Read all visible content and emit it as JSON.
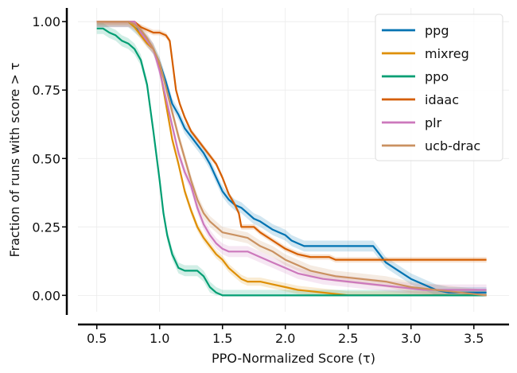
{
  "chart_data": {
    "type": "line",
    "xlabel": "PPO-Normalized Score (τ)",
    "ylabel": "Fraction of runs with score > τ",
    "xlim": [
      0.35,
      3.78
    ],
    "ylim": [
      -0.06,
      1.05
    ],
    "xticks": [
      "0.5",
      "1.0",
      "1.5",
      "2.0",
      "2.5",
      "3.0",
      "3.5"
    ],
    "xtick_values": [
      0.5,
      1.0,
      1.5,
      2.0,
      2.5,
      3.0,
      3.5
    ],
    "yticks": [
      "0.00",
      "0.25",
      "0.50",
      "0.75",
      "1.00"
    ],
    "ytick_values": [
      0.0,
      0.25,
      0.5,
      0.75,
      1.0
    ],
    "grid": true,
    "legend_position": "top-right",
    "series": [
      {
        "name": "ppg",
        "color": "#0173b2",
        "band": 0.02,
        "points": [
          [
            0.5,
            1.0
          ],
          [
            0.75,
            1.0
          ],
          [
            0.8,
            0.98
          ],
          [
            0.85,
            0.96
          ],
          [
            0.9,
            0.93
          ],
          [
            0.95,
            0.9
          ],
          [
            1.0,
            0.85
          ],
          [
            1.05,
            0.78
          ],
          [
            1.1,
            0.7
          ],
          [
            1.15,
            0.66
          ],
          [
            1.2,
            0.61
          ],
          [
            1.25,
            0.58
          ],
          [
            1.3,
            0.55
          ],
          [
            1.35,
            0.52
          ],
          [
            1.4,
            0.48
          ],
          [
            1.45,
            0.43
          ],
          [
            1.5,
            0.38
          ],
          [
            1.55,
            0.35
          ],
          [
            1.6,
            0.33
          ],
          [
            1.65,
            0.32
          ],
          [
            1.7,
            0.3
          ],
          [
            1.75,
            0.28
          ],
          [
            1.8,
            0.27
          ],
          [
            1.9,
            0.24
          ],
          [
            2.0,
            0.22
          ],
          [
            2.05,
            0.2
          ],
          [
            2.1,
            0.19
          ],
          [
            2.15,
            0.18
          ],
          [
            2.7,
            0.18
          ],
          [
            2.75,
            0.15
          ],
          [
            2.8,
            0.12
          ],
          [
            2.9,
            0.09
          ],
          [
            3.0,
            0.06
          ],
          [
            3.1,
            0.04
          ],
          [
            3.2,
            0.02
          ],
          [
            3.3,
            0.01
          ],
          [
            3.6,
            0.01
          ]
        ]
      },
      {
        "name": "mixreg",
        "color": "#de8f05",
        "band": 0.015,
        "points": [
          [
            0.5,
            1.0
          ],
          [
            0.75,
            1.0
          ],
          [
            0.8,
            0.98
          ],
          [
            0.85,
            0.95
          ],
          [
            0.9,
            0.92
          ],
          [
            0.95,
            0.9
          ],
          [
            1.0,
            0.83
          ],
          [
            1.05,
            0.7
          ],
          [
            1.1,
            0.57
          ],
          [
            1.15,
            0.48
          ],
          [
            1.2,
            0.38
          ],
          [
            1.25,
            0.31
          ],
          [
            1.3,
            0.25
          ],
          [
            1.35,
            0.21
          ],
          [
            1.4,
            0.18
          ],
          [
            1.45,
            0.15
          ],
          [
            1.5,
            0.13
          ],
          [
            1.55,
            0.1
          ],
          [
            1.6,
            0.08
          ],
          [
            1.65,
            0.06
          ],
          [
            1.7,
            0.05
          ],
          [
            1.8,
            0.05
          ],
          [
            1.9,
            0.04
          ],
          [
            2.0,
            0.03
          ],
          [
            2.1,
            0.02
          ],
          [
            2.3,
            0.01
          ],
          [
            2.5,
            0.0
          ],
          [
            3.6,
            0.0
          ]
        ]
      },
      {
        "name": "ppo",
        "color": "#029e73",
        "band": 0.02,
        "points": [
          [
            0.5,
            0.975
          ],
          [
            0.55,
            0.975
          ],
          [
            0.6,
            0.96
          ],
          [
            0.65,
            0.95
          ],
          [
            0.7,
            0.93
          ],
          [
            0.75,
            0.92
          ],
          [
            0.8,
            0.9
          ],
          [
            0.85,
            0.86
          ],
          [
            0.9,
            0.77
          ],
          [
            0.95,
            0.6
          ],
          [
            1.0,
            0.42
          ],
          [
            1.03,
            0.3
          ],
          [
            1.06,
            0.22
          ],
          [
            1.1,
            0.15
          ],
          [
            1.15,
            0.1
          ],
          [
            1.2,
            0.09
          ],
          [
            1.3,
            0.09
          ],
          [
            1.35,
            0.07
          ],
          [
            1.4,
            0.03
          ],
          [
            1.45,
            0.01
          ],
          [
            1.5,
            0.0
          ],
          [
            3.6,
            0.0
          ]
        ]
      },
      {
        "name": "idaac",
        "color": "#d55e00",
        "band": 0.01,
        "points": [
          [
            0.5,
            1.0
          ],
          [
            0.8,
            1.0
          ],
          [
            0.85,
            0.98
          ],
          [
            0.9,
            0.97
          ],
          [
            0.95,
            0.96
          ],
          [
            1.0,
            0.96
          ],
          [
            1.05,
            0.95
          ],
          [
            1.08,
            0.93
          ],
          [
            1.1,
            0.86
          ],
          [
            1.13,
            0.75
          ],
          [
            1.16,
            0.7
          ],
          [
            1.2,
            0.65
          ],
          [
            1.25,
            0.6
          ],
          [
            1.3,
            0.57
          ],
          [
            1.35,
            0.54
          ],
          [
            1.4,
            0.51
          ],
          [
            1.45,
            0.48
          ],
          [
            1.5,
            0.43
          ],
          [
            1.55,
            0.37
          ],
          [
            1.6,
            0.33
          ],
          [
            1.63,
            0.3
          ],
          [
            1.65,
            0.25
          ],
          [
            1.75,
            0.25
          ],
          [
            1.8,
            0.23
          ],
          [
            1.9,
            0.2
          ],
          [
            2.0,
            0.17
          ],
          [
            2.1,
            0.15
          ],
          [
            2.2,
            0.14
          ],
          [
            2.35,
            0.14
          ],
          [
            2.4,
            0.13
          ],
          [
            3.6,
            0.13
          ]
        ]
      },
      {
        "name": "plr",
        "color": "#cc78bc",
        "band": 0.02,
        "points": [
          [
            0.5,
            1.0
          ],
          [
            0.8,
            1.0
          ],
          [
            0.85,
            0.96
          ],
          [
            0.9,
            0.93
          ],
          [
            0.95,
            0.9
          ],
          [
            1.0,
            0.82
          ],
          [
            1.05,
            0.72
          ],
          [
            1.1,
            0.62
          ],
          [
            1.15,
            0.52
          ],
          [
            1.2,
            0.45
          ],
          [
            1.25,
            0.4
          ],
          [
            1.3,
            0.32
          ],
          [
            1.35,
            0.26
          ],
          [
            1.4,
            0.22
          ],
          [
            1.45,
            0.19
          ],
          [
            1.5,
            0.17
          ],
          [
            1.55,
            0.16
          ],
          [
            1.7,
            0.16
          ],
          [
            1.8,
            0.14
          ],
          [
            1.9,
            0.12
          ],
          [
            2.0,
            0.1
          ],
          [
            2.1,
            0.08
          ],
          [
            2.2,
            0.07
          ],
          [
            2.3,
            0.06
          ],
          [
            2.5,
            0.05
          ],
          [
            2.7,
            0.04
          ],
          [
            2.9,
            0.03
          ],
          [
            3.1,
            0.02
          ],
          [
            3.6,
            0.02
          ]
        ]
      },
      {
        "name": "ucb-drac",
        "color": "#ca9161",
        "band": 0.02,
        "points": [
          [
            0.5,
            1.0
          ],
          [
            0.75,
            1.0
          ],
          [
            0.8,
            0.99
          ],
          [
            0.85,
            0.97
          ],
          [
            0.9,
            0.94
          ],
          [
            0.95,
            0.9
          ],
          [
            1.0,
            0.85
          ],
          [
            1.05,
            0.76
          ],
          [
            1.1,
            0.67
          ],
          [
            1.15,
            0.58
          ],
          [
            1.2,
            0.5
          ],
          [
            1.25,
            0.42
          ],
          [
            1.3,
            0.35
          ],
          [
            1.35,
            0.3
          ],
          [
            1.4,
            0.27
          ],
          [
            1.45,
            0.25
          ],
          [
            1.5,
            0.23
          ],
          [
            1.6,
            0.22
          ],
          [
            1.7,
            0.21
          ],
          [
            1.8,
            0.18
          ],
          [
            1.9,
            0.16
          ],
          [
            2.0,
            0.13
          ],
          [
            2.1,
            0.11
          ],
          [
            2.2,
            0.09
          ],
          [
            2.4,
            0.07
          ],
          [
            2.6,
            0.06
          ],
          [
            2.8,
            0.05
          ],
          [
            3.0,
            0.03
          ],
          [
            3.2,
            0.02
          ],
          [
            3.6,
            0.0
          ]
        ]
      }
    ]
  }
}
